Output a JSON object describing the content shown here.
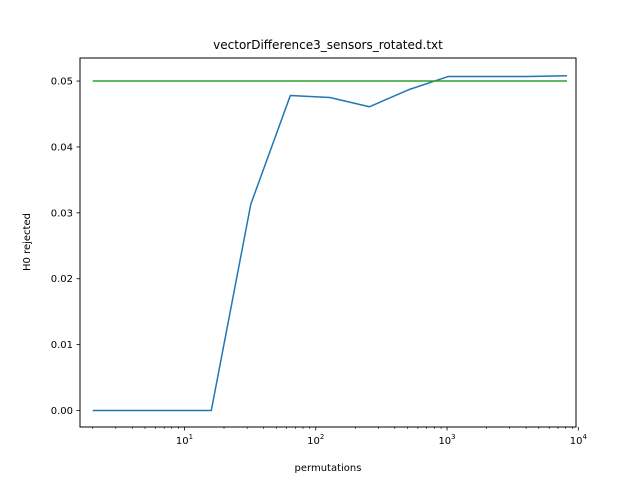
{
  "chart_data": {
    "type": "line",
    "title": "vectorDifference3_sensors_rotated.txt",
    "xlabel": "permutations",
    "ylabel": "H0 rejected",
    "x_scale": "log",
    "xlim": [
      1.6,
      9600
    ],
    "ylim": [
      -0.0025,
      0.0535
    ],
    "x_ticks": [
      {
        "value": 10,
        "base": "10",
        "exp": "1"
      },
      {
        "value": 100,
        "base": "10",
        "exp": "2"
      },
      {
        "value": 1000,
        "base": "10",
        "exp": "3"
      },
      {
        "value": 10000,
        "base": "10",
        "exp": "4"
      }
    ],
    "y_ticks": [
      {
        "value": 0.0,
        "label": "0.00"
      },
      {
        "value": 0.01,
        "label": "0.01"
      },
      {
        "value": 0.02,
        "label": "0.02"
      },
      {
        "value": 0.03,
        "label": "0.03"
      },
      {
        "value": 0.04,
        "label": "0.04"
      },
      {
        "value": 0.05,
        "label": "0.05"
      }
    ],
    "grid": false,
    "legend": "none",
    "series": [
      {
        "color": "#1f77b4",
        "x": [
          2,
          4,
          8,
          16,
          32,
          64,
          128,
          256,
          512,
          1024,
          2048,
          4096,
          8192
        ],
        "y": [
          0.0,
          0.0,
          0.0,
          0.0,
          0.0313,
          0.0478,
          0.0475,
          0.0461,
          0.0487,
          0.0507,
          0.0507,
          0.0507,
          0.0508
        ]
      },
      {
        "color": "#2ca02c",
        "x": [
          2,
          8192
        ],
        "y": [
          0.05,
          0.05
        ]
      }
    ]
  }
}
